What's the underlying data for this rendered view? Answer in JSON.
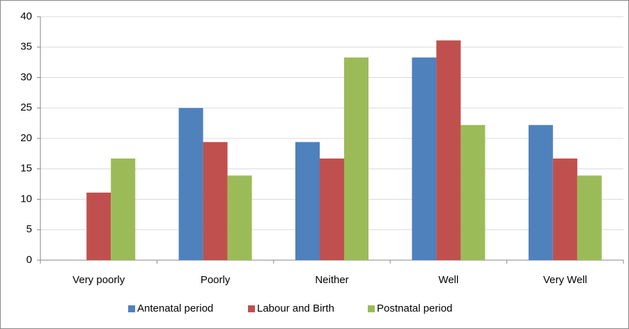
{
  "chart_data": {
    "type": "bar",
    "categories": [
      "Very poorly",
      "Poorly",
      "Neither",
      "Well",
      "Very Well"
    ],
    "series": [
      {
        "name": "Antenatal period",
        "color": "#4f81bd",
        "values": [
          0,
          25,
          19.4,
          33.3,
          22.2
        ]
      },
      {
        "name": "Labour and Birth",
        "color": "#c0504d",
        "values": [
          11.1,
          19.4,
          16.7,
          36.1,
          16.7
        ]
      },
      {
        "name": "Postnatal period",
        "color": "#9bbb59",
        "values": [
          16.7,
          13.9,
          33.3,
          22.2,
          13.9
        ]
      }
    ],
    "ylim": [
      0,
      40
    ],
    "yticks": [
      0,
      5,
      10,
      15,
      20,
      25,
      30,
      35,
      40
    ],
    "grid": true,
    "legend": "bottom"
  }
}
